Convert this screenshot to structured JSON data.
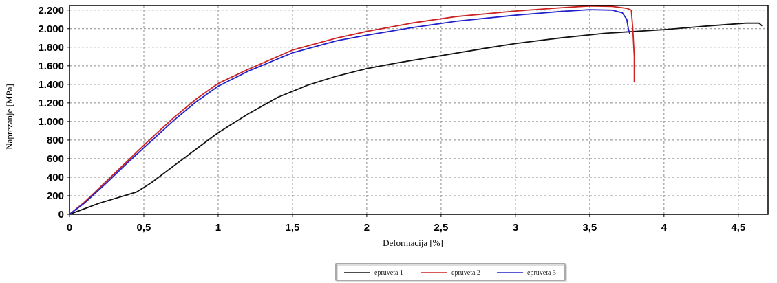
{
  "chart_data": {
    "type": "line",
    "xlabel": "Deformacija [%]",
    "ylabel": "Naprezanje  [MPa]",
    "xlim": [
      0,
      4.7
    ],
    "ylim": [
      0,
      2250
    ],
    "x_ticks": [
      0,
      0.5,
      1,
      1.5,
      2,
      2.5,
      3,
      3.5,
      4,
      4.5
    ],
    "x_tick_labels": [
      "0",
      "0,5",
      "1",
      "1,5",
      "2",
      "2,5",
      "3",
      "3,5",
      "4",
      "4,5"
    ],
    "y_ticks": [
      0,
      200,
      400,
      600,
      800,
      1000,
      1200,
      1400,
      1600,
      1800,
      2000,
      2200
    ],
    "y_tick_labels": [
      "0",
      "200",
      "400",
      "600",
      "800",
      "1.000",
      "1.200",
      "1.400",
      "1.600",
      "1.800",
      "2.000",
      "2.200"
    ],
    "grid": true,
    "legend_position": "bottom-center",
    "series": [
      {
        "name": "epruveta 1",
        "color": "#111111",
        "points": [
          [
            0,
            0
          ],
          [
            0.2,
            120
          ],
          [
            0.45,
            240
          ],
          [
            0.55,
            340
          ],
          [
            0.7,
            520
          ],
          [
            0.85,
            700
          ],
          [
            1.0,
            880
          ],
          [
            1.2,
            1080
          ],
          [
            1.4,
            1260
          ],
          [
            1.6,
            1390
          ],
          [
            1.8,
            1490
          ],
          [
            2.0,
            1570
          ],
          [
            2.2,
            1630
          ],
          [
            2.5,
            1710
          ],
          [
            2.8,
            1790
          ],
          [
            3.0,
            1840
          ],
          [
            3.3,
            1900
          ],
          [
            3.6,
            1950
          ],
          [
            4.0,
            1990
          ],
          [
            4.3,
            2030
          ],
          [
            4.55,
            2060
          ],
          [
            4.64,
            2060
          ],
          [
            4.66,
            2030
          ]
        ]
      },
      {
        "name": "epruveta 2",
        "color": "#cc2222",
        "points": [
          [
            0,
            0
          ],
          [
            0.1,
            130
          ],
          [
            0.25,
            360
          ],
          [
            0.4,
            590
          ],
          [
            0.55,
            820
          ],
          [
            0.7,
            1040
          ],
          [
            0.85,
            1240
          ],
          [
            1.0,
            1410
          ],
          [
            1.2,
            1560
          ],
          [
            1.5,
            1770
          ],
          [
            1.8,
            1900
          ],
          [
            2.0,
            1970
          ],
          [
            2.3,
            2060
          ],
          [
            2.6,
            2130
          ],
          [
            3.0,
            2190
          ],
          [
            3.3,
            2225
          ],
          [
            3.5,
            2245
          ],
          [
            3.65,
            2240
          ],
          [
            3.75,
            2220
          ],
          [
            3.78,
            2200
          ],
          [
            3.79,
            2000
          ],
          [
            3.8,
            1700
          ],
          [
            3.8,
            1420
          ]
        ]
      },
      {
        "name": "epruveta 3",
        "color": "#2222cc",
        "points": [
          [
            0,
            0
          ],
          [
            0.1,
            120
          ],
          [
            0.25,
            340
          ],
          [
            0.4,
            570
          ],
          [
            0.55,
            790
          ],
          [
            0.7,
            1010
          ],
          [
            0.85,
            1210
          ],
          [
            1.0,
            1380
          ],
          [
            1.2,
            1540
          ],
          [
            1.5,
            1740
          ],
          [
            1.8,
            1870
          ],
          [
            2.0,
            1930
          ],
          [
            2.3,
            2010
          ],
          [
            2.6,
            2080
          ],
          [
            3.0,
            2145
          ],
          [
            3.3,
            2185
          ],
          [
            3.5,
            2205
          ],
          [
            3.65,
            2200
          ],
          [
            3.72,
            2170
          ],
          [
            3.75,
            2100
          ],
          [
            3.76,
            2000
          ],
          [
            3.77,
            1940
          ]
        ]
      }
    ]
  }
}
